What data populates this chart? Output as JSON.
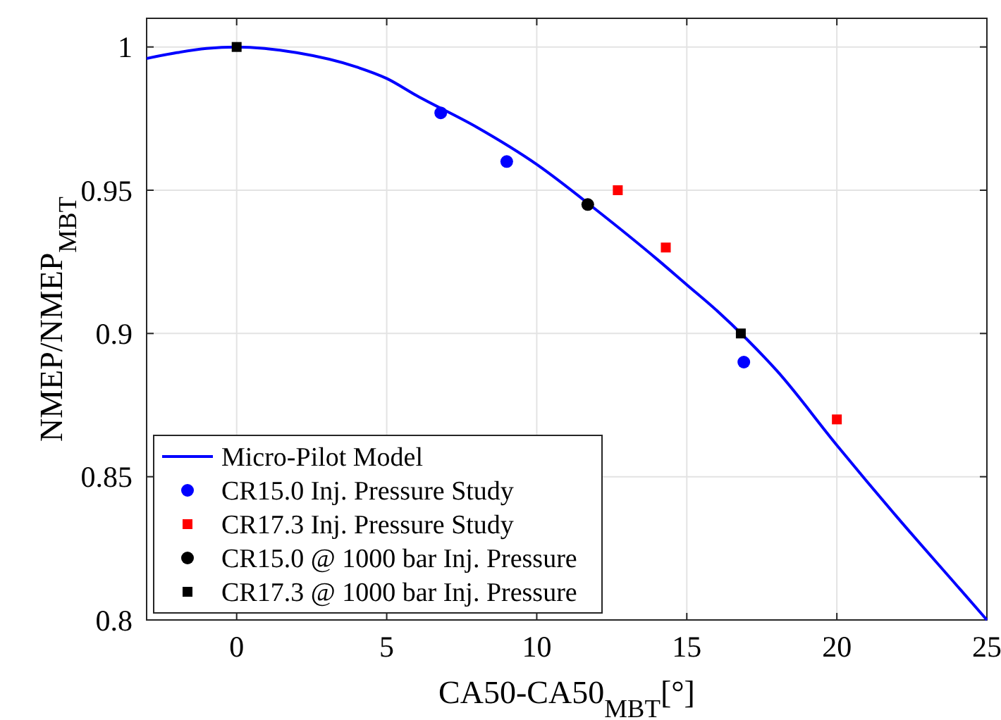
{
  "chart_data": {
    "type": "scatter",
    "xlabel": "CA50-CA50$_{MBT}$[°]",
    "ylabel": "NMEP/NMEP$_{MBT}$",
    "xlim": [
      -3,
      25
    ],
    "ylim": [
      0.8,
      1.01
    ],
    "xticks": [
      0,
      5,
      10,
      15,
      20,
      25
    ],
    "yticks": [
      0.8,
      0.85,
      0.9,
      0.95,
      1
    ],
    "grid": true,
    "legend": "bottom left",
    "series": [
      {
        "name": "Micro-Pilot Model",
        "type": "line",
        "color": "#0000ff",
        "marker": "none",
        "x": [
          -3,
          -2,
          -1,
          0,
          2,
          4,
          5,
          6,
          8,
          10,
          12,
          14,
          15,
          16,
          17,
          18,
          20,
          22,
          24,
          25
        ],
        "values": [
          0.996,
          0.998,
          0.9995,
          1,
          0.998,
          0.993,
          0.989,
          0.983,
          0.972,
          0.959,
          0.943,
          0.926,
          0.917,
          0.908,
          0.898,
          0.887,
          0.861,
          0.836,
          0.812,
          0.8
        ]
      },
      {
        "name": "CR15.0 Inj. Pressure Study",
        "color": "#0000ff",
        "marker": "circle",
        "x": [
          6.8,
          9.0,
          16.9
        ],
        "values": [
          0.977,
          0.96,
          0.89
        ]
      },
      {
        "name": "CR17.3 Inj. Pressure Study",
        "color": "#ff0000",
        "marker": "square",
        "x": [
          12.7,
          14.3,
          20.0
        ],
        "values": [
          0.95,
          0.93,
          0.87
        ]
      },
      {
        "name": "CR15.0 @ 1000 bar Inj. Pressure",
        "color": "#000000",
        "marker": "circle",
        "x": [
          11.7
        ],
        "values": [
          0.945
        ]
      },
      {
        "name": "CR17.3 @ 1000 bar Inj. Pressure",
        "color": "#000000",
        "marker": "square",
        "x": [
          0,
          16.8
        ],
        "values": [
          1,
          0.9
        ]
      }
    ]
  }
}
